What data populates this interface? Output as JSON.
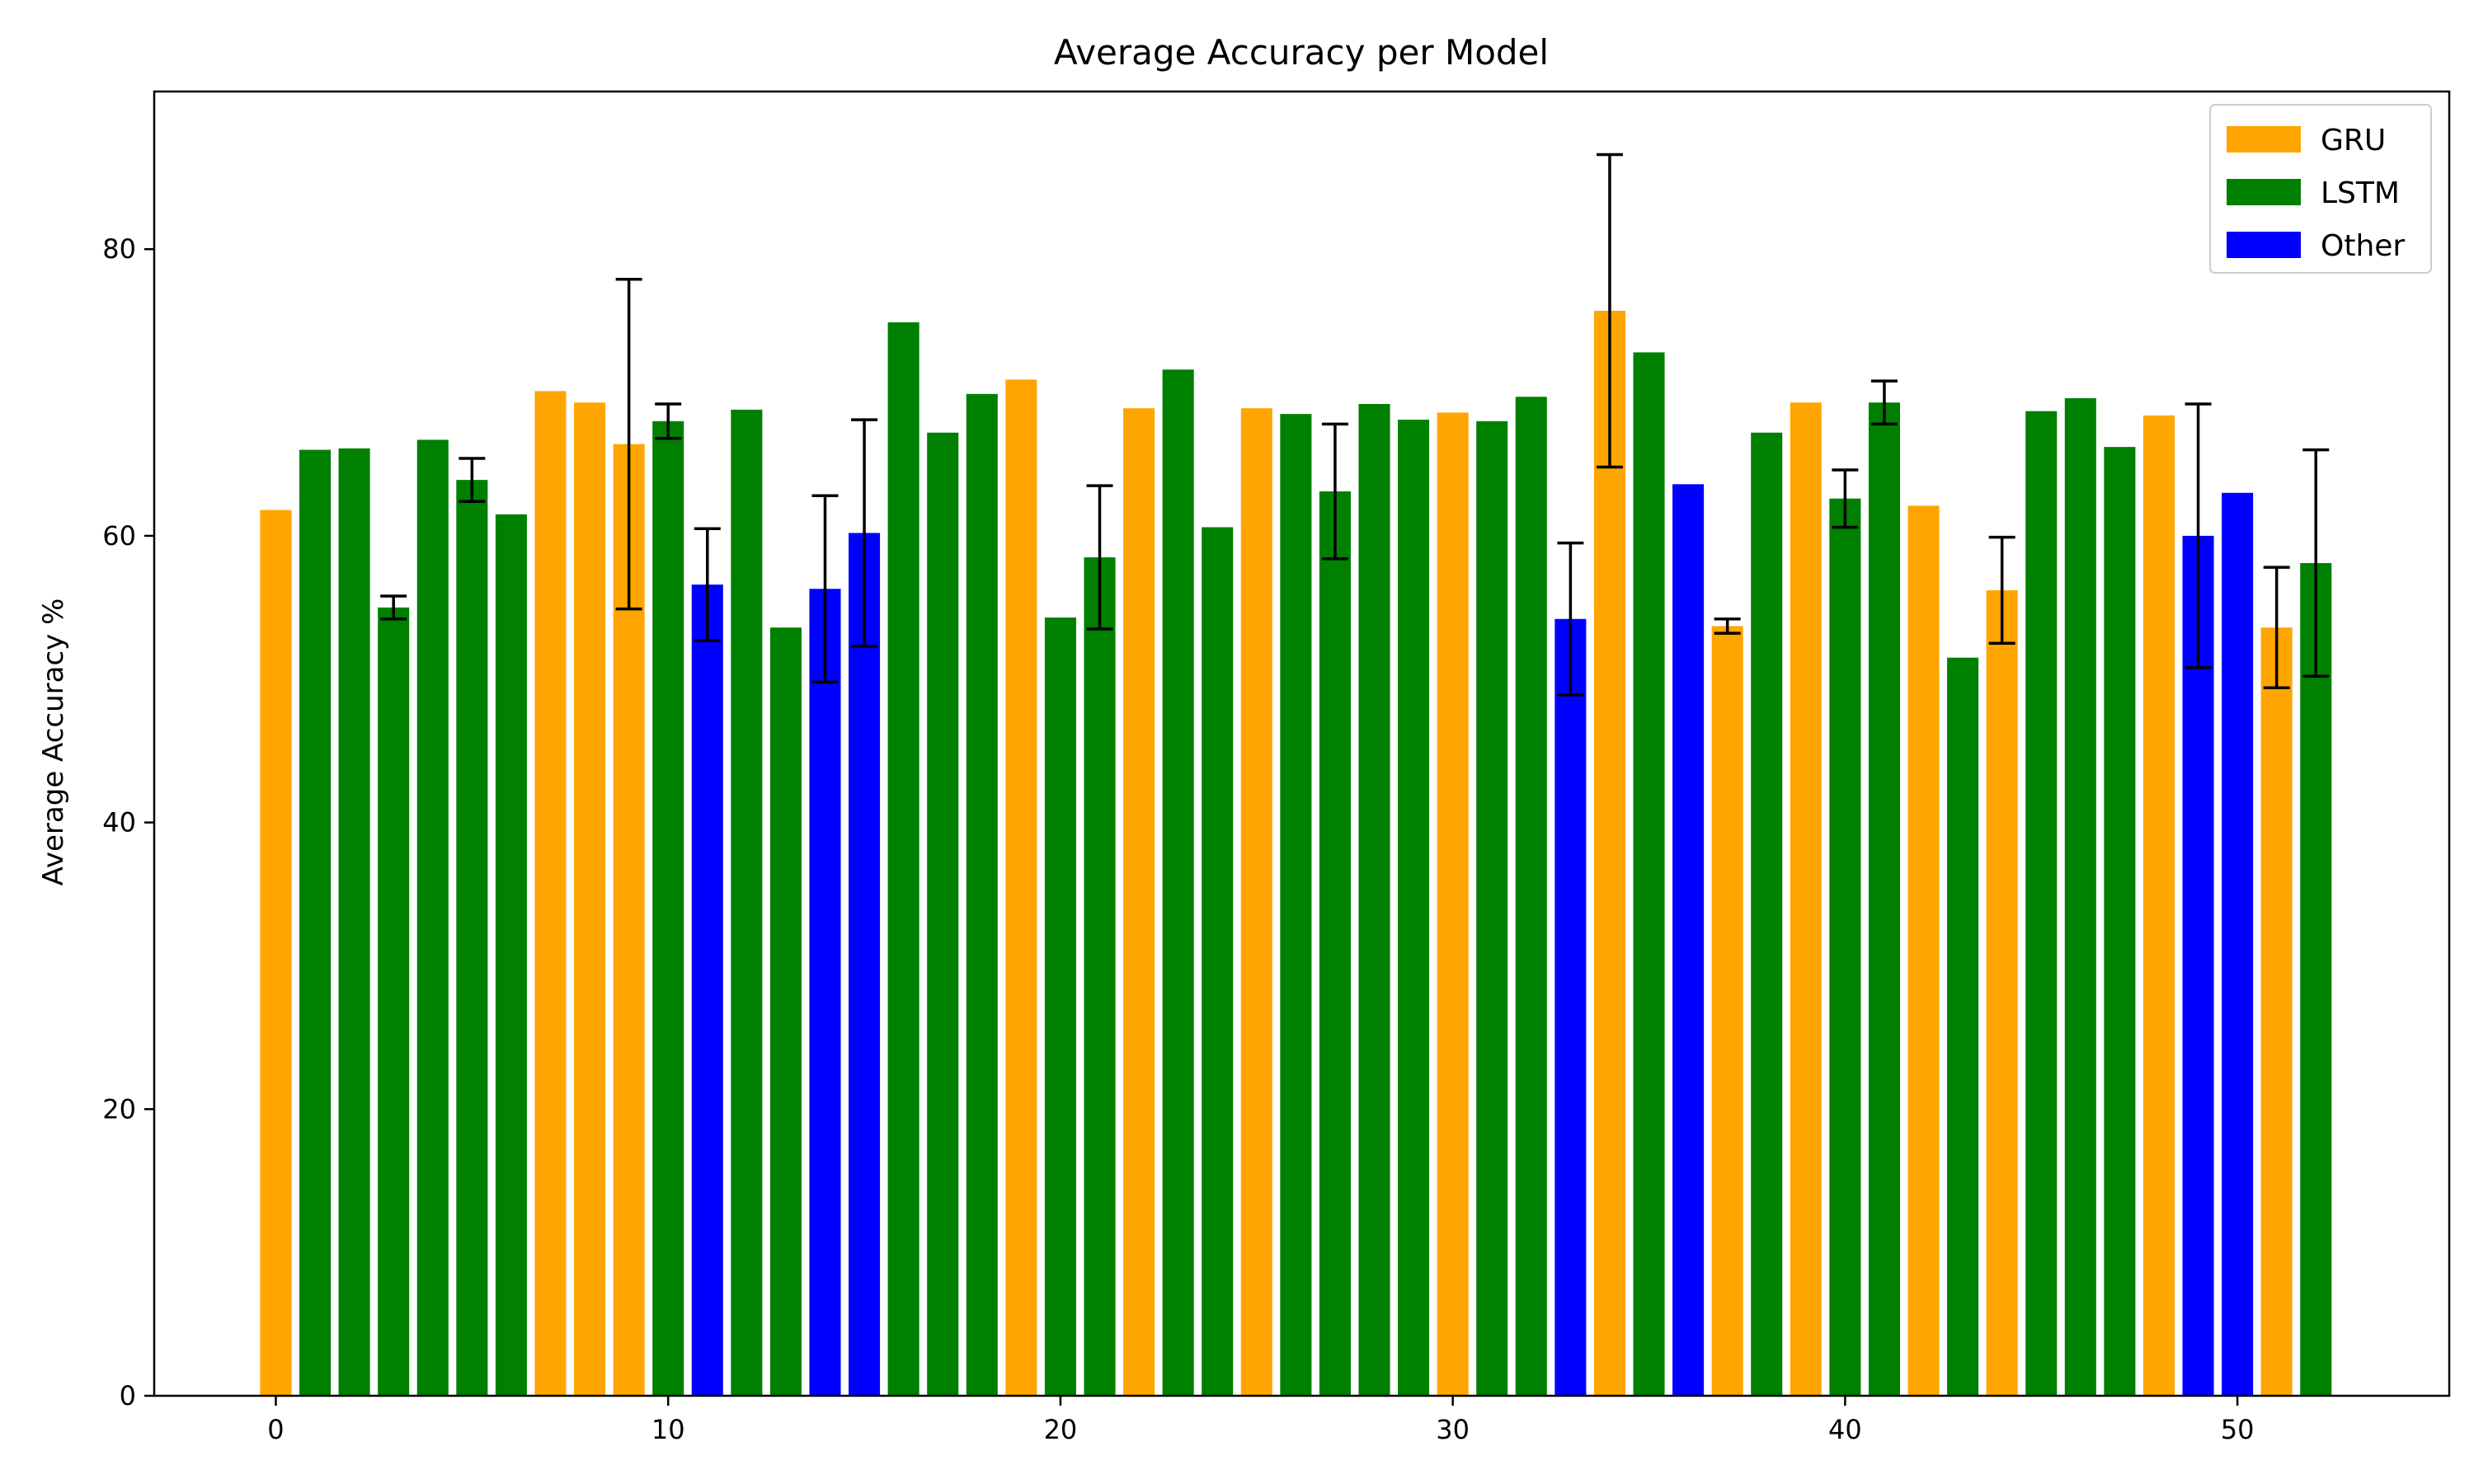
{
  "chart_data": {
    "type": "bar",
    "title": "Average Accuracy per Model",
    "xlabel": "",
    "ylabel": "Average Accuracy %",
    "xlim": [
      -3.1,
      55.4
    ],
    "ylim": [
      0,
      91
    ],
    "xticks": [
      0,
      10,
      20,
      30,
      40,
      50
    ],
    "yticks": [
      0,
      20,
      40,
      60,
      80
    ],
    "grid": false,
    "legend": {
      "placement": "top-right",
      "entries": [
        {
          "name": "GRU",
          "color": "#FFA500"
        },
        {
          "name": "LSTM",
          "color": "#008000"
        },
        {
          "name": "Other",
          "color": "#0000FF"
        }
      ]
    },
    "colors": {
      "GRU": "#FFA500",
      "LSTM": "#008000",
      "Other": "#0000FF",
      "errorbar": "#000000"
    },
    "x": [
      0,
      1,
      2,
      3,
      4,
      5,
      6,
      7,
      8,
      9,
      10,
      11,
      12,
      13,
      14,
      15,
      16,
      17,
      18,
      19,
      20,
      21,
      22,
      23,
      24,
      25,
      26,
      27,
      28,
      29,
      30,
      31,
      32,
      33,
      34,
      35,
      36,
      37,
      38,
      39,
      40,
      41,
      42,
      43,
      44,
      45,
      46,
      47,
      48,
      49,
      50,
      51,
      52
    ],
    "category": [
      "GRU",
      "LSTM",
      "LSTM",
      "LSTM",
      "LSTM",
      "LSTM",
      "LSTM",
      "GRU",
      "GRU",
      "GRU",
      "LSTM",
      "Other",
      "LSTM",
      "LSTM",
      "Other",
      "Other",
      "LSTM",
      "LSTM",
      "LSTM",
      "GRU",
      "LSTM",
      "LSTM",
      "GRU",
      "LSTM",
      "LSTM",
      "GRU",
      "LSTM",
      "LSTM",
      "LSTM",
      "LSTM",
      "GRU",
      "LSTM",
      "LSTM",
      "Other",
      "GRU",
      "LSTM",
      "Other",
      "GRU",
      "LSTM",
      "GRU",
      "LSTM",
      "LSTM",
      "GRU",
      "LSTM",
      "GRU",
      "LSTM",
      "LSTM",
      "LSTM",
      "GRU",
      "Other",
      "Other",
      "GRU",
      "LSTM"
    ],
    "values": [
      61.8,
      66.0,
      66.1,
      55.0,
      66.7,
      63.9,
      61.5,
      70.1,
      69.3,
      66.4,
      68.0,
      56.6,
      68.8,
      53.6,
      56.3,
      60.2,
      74.9,
      67.2,
      69.9,
      70.9,
      54.3,
      58.5,
      68.9,
      71.6,
      60.6,
      68.9,
      68.5,
      63.1,
      69.2,
      68.1,
      68.6,
      68.0,
      69.7,
      54.2,
      75.7,
      72.8,
      63.6,
      53.7,
      67.2,
      69.3,
      62.6,
      69.3,
      62.1,
      51.5,
      56.2,
      68.7,
      69.6,
      66.2,
      68.4,
      60.0,
      63.0,
      53.6,
      58.1
    ],
    "error": [
      0,
      0,
      0,
      0.8,
      0,
      1.5,
      0,
      0,
      0,
      11.5,
      1.2,
      3.9,
      0,
      0,
      6.5,
      7.9,
      0,
      0,
      0,
      0,
      0,
      5.0,
      0,
      0,
      0,
      0,
      0,
      4.7,
      0,
      0,
      0,
      0,
      0,
      5.3,
      10.9,
      0,
      0,
      0.5,
      0,
      0,
      2.0,
      1.5,
      0,
      0,
      3.7,
      0,
      0,
      0,
      0,
      9.2,
      0,
      4.2,
      7.9
    ]
  }
}
